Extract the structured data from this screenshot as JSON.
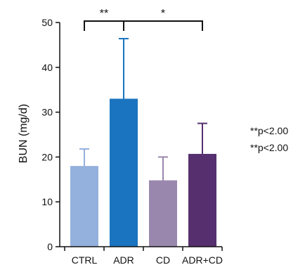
{
  "chart_data": {
    "type": "bar",
    "title": "",
    "xlabel": "",
    "ylabel": "BUN (mg/d)",
    "ylim": [
      0,
      50
    ],
    "yticks": [
      0,
      10,
      20,
      30,
      40,
      50
    ],
    "grid": false,
    "categories": [
      "CTRL",
      "ADR",
      "CD",
      "ADR+CD"
    ],
    "values": [
      18,
      33,
      14.8,
      20.7
    ],
    "errors": [
      3.8,
      13.4,
      5.2,
      6.8
    ],
    "colors": [
      "#94b0dc",
      "#1a74bf",
      "#9a87ad",
      "#56306e"
    ],
    "error_colors": [
      "#94b0dc",
      "#1a74bf",
      "#9a87ad",
      "#56306e"
    ],
    "significance": [
      {
        "from": 0,
        "to": 1,
        "label": "**"
      },
      {
        "from": 1,
        "to": 3,
        "label": "*"
      }
    ],
    "annotations": [
      "**p<2.00",
      "**p<2.00"
    ]
  }
}
